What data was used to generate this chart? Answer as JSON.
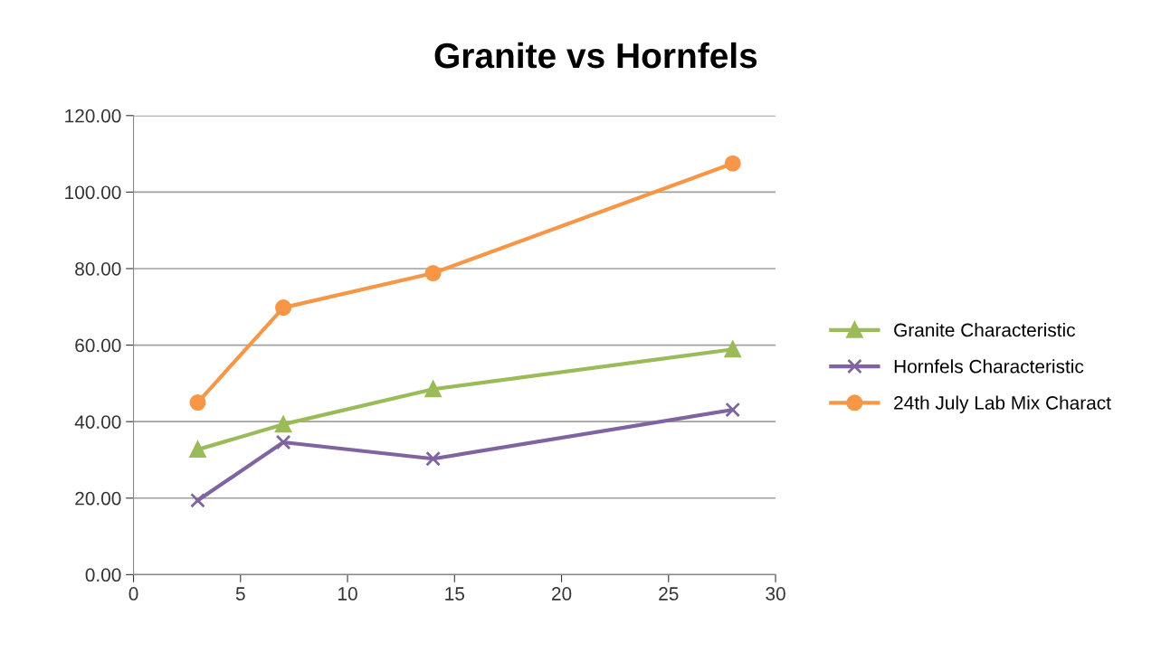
{
  "chart_data": {
    "type": "line",
    "title": "Granite vs Hornfels",
    "x": [
      3,
      7,
      14,
      28
    ],
    "series": [
      {
        "name": "Granite Characteristic",
        "color": "#9bbb59",
        "marker": "triangle",
        "values": [
          32.7,
          39.3,
          48.5,
          58.9
        ]
      },
      {
        "name": "Hornfels Characteristic",
        "color": "#8064a2",
        "marker": "cross",
        "values": [
          19.4,
          34.6,
          30.3,
          43.1
        ]
      },
      {
        "name": "24th July Lab Mix Charact",
        "color": "#f79646",
        "marker": "circle",
        "values": [
          45.0,
          69.8,
          78.8,
          107.5
        ]
      }
    ],
    "xlim": [
      0,
      30
    ],
    "xticks": [
      0,
      5,
      10,
      15,
      20,
      25,
      30
    ],
    "ylim": [
      0,
      120
    ],
    "yticks": [
      {
        "value": 0,
        "label": "0.00"
      },
      {
        "value": 20,
        "label": "20.00"
      },
      {
        "value": 40,
        "label": "40.00"
      },
      {
        "value": 60,
        "label": "60.00"
      },
      {
        "value": 80,
        "label": "80.00"
      },
      {
        "value": 100,
        "label": "100.00"
      },
      {
        "value": 120,
        "label": "120.00"
      }
    ],
    "grid": "y",
    "legend": "right",
    "line_style": "solid"
  }
}
